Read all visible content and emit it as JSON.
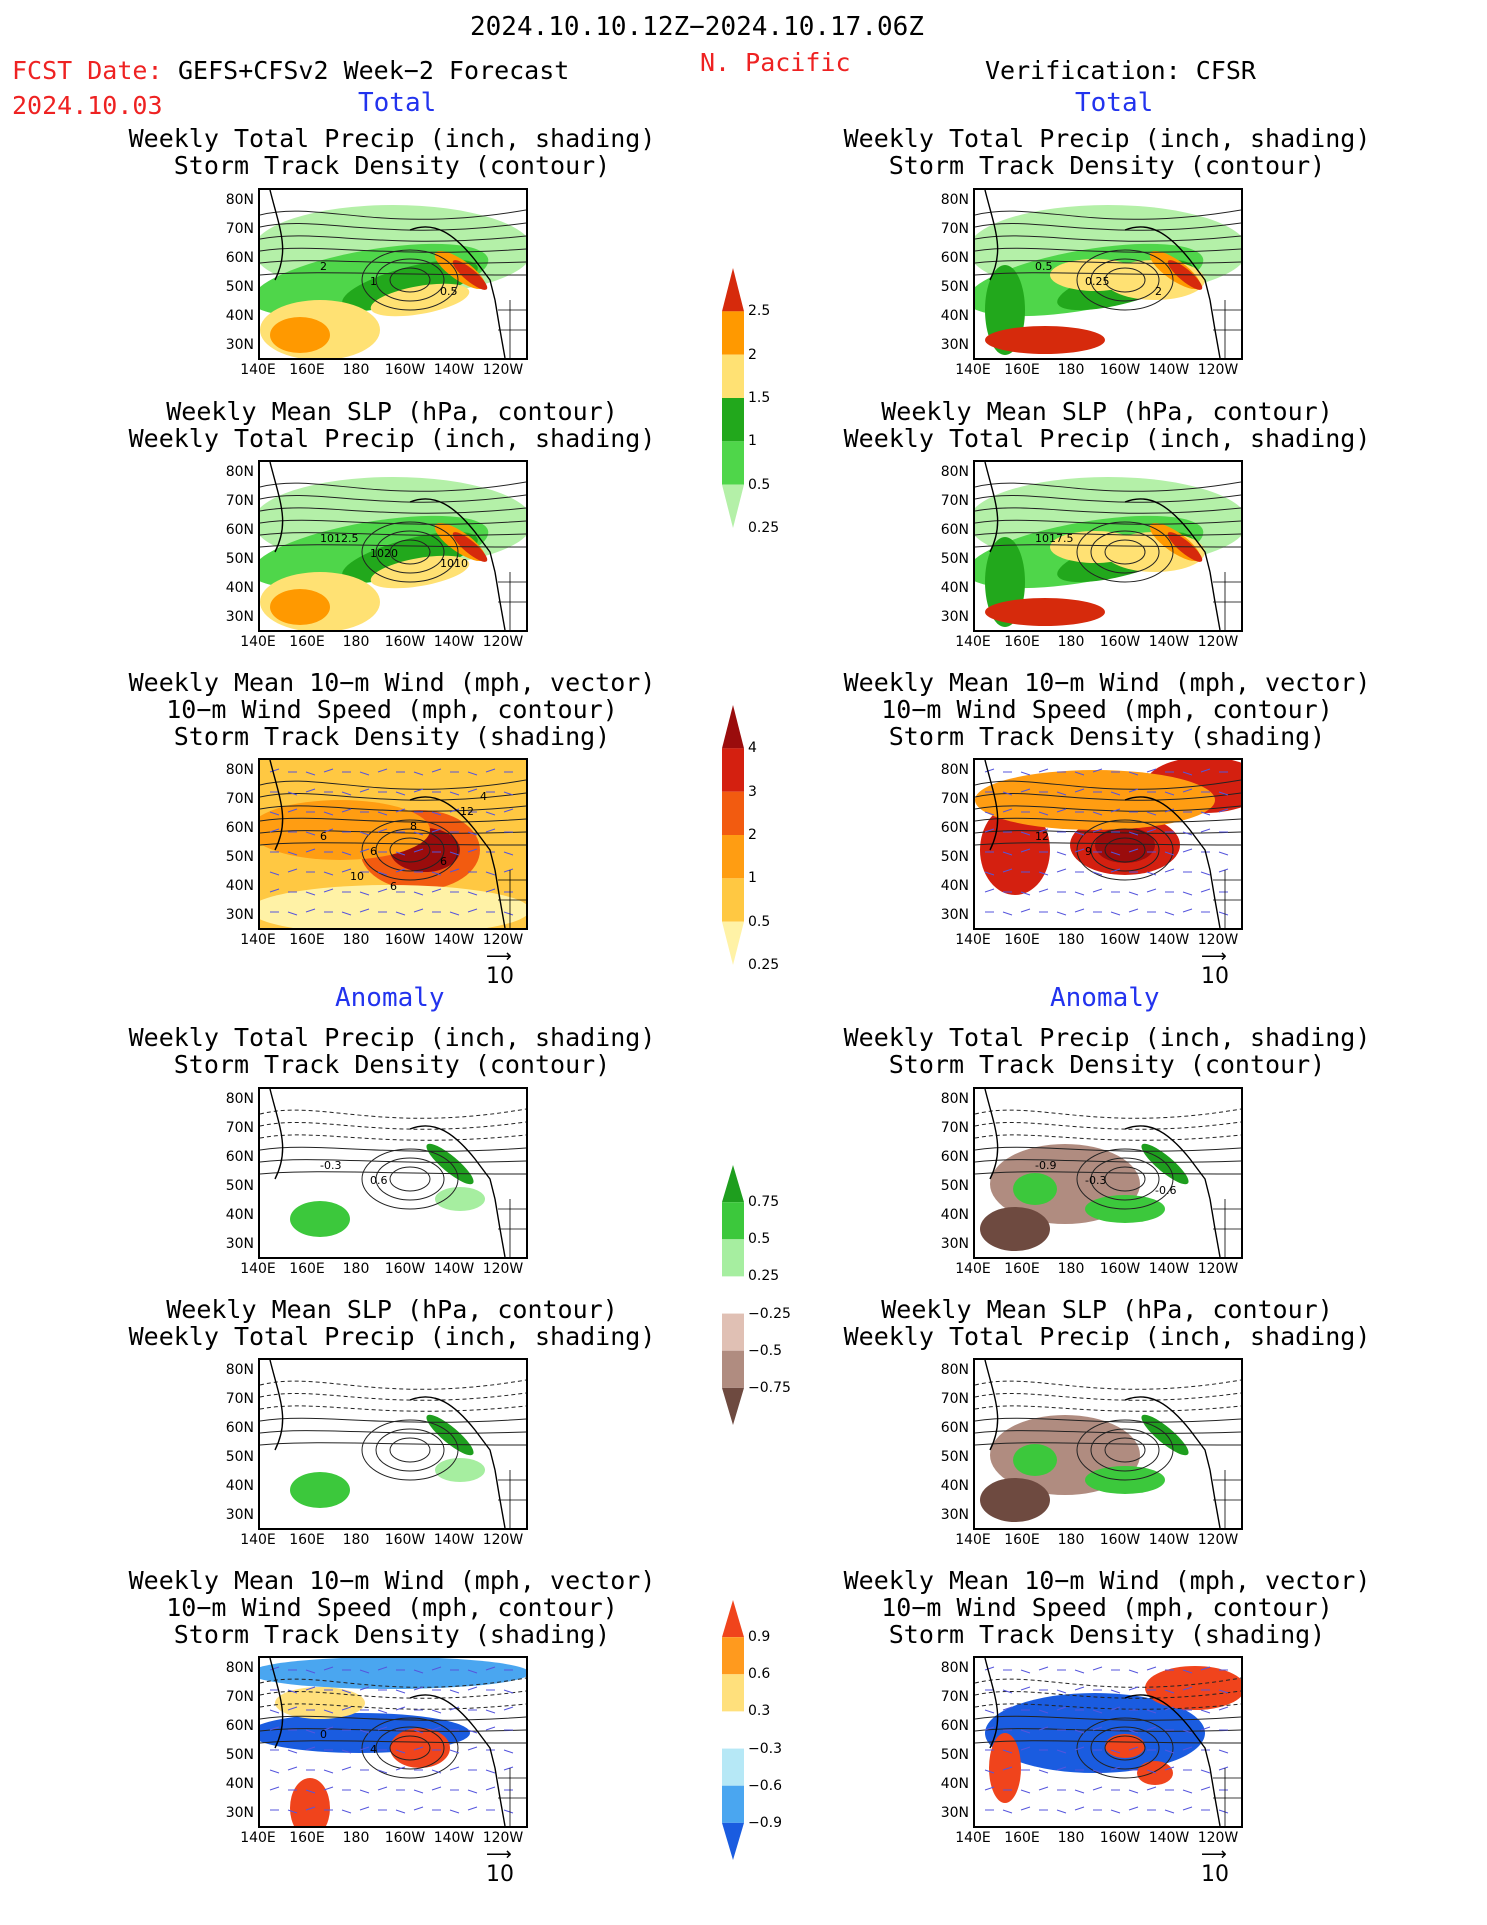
{
  "header": {
    "period": "2024.10.10.12Z−2024.10.17.06Z",
    "region": "N. Pacific",
    "fcst_label": "FCST Date:",
    "fcst_model": "GEFS+CFSv2 Week−2 Forecast",
    "fcst_date": "2024.10.03",
    "verification": "Verification: CFSR"
  },
  "sections": {
    "total": "Total",
    "anomaly": "Anomaly"
  },
  "titles": {
    "precip_storm": [
      "Weekly Total Precip (inch, shading)",
      "Storm Track Density (contour)"
    ],
    "slp_precip": [
      "Weekly Mean SLP (hPa, contour)",
      "Weekly Total Precip (inch, shading)"
    ],
    "wind": [
      "Weekly Mean 10−m Wind (mph, vector)",
      "10−m Wind Speed (mph, contour)",
      "Storm Track Density (shading)"
    ]
  },
  "axes": {
    "lat": [
      "80N",
      "70N",
      "60N",
      "50N",
      "40N",
      "30N"
    ],
    "lon": [
      "140E",
      "160E",
      "180",
      "160W",
      "140W",
      "120W"
    ]
  },
  "vector_ref": "10",
  "colorbars": {
    "precip_total": {
      "labels": [
        "2.5",
        "2",
        "1.5",
        "1",
        "0.5",
        "0.25"
      ],
      "colors": [
        "#d62a0c",
        "#ff9900",
        "#ffe173",
        "#22a81c",
        "#4fd64a",
        "#b4f0a8"
      ]
    },
    "storm_total": {
      "labels": [
        "4",
        "3",
        "2",
        "1",
        "0.5",
        "0.25"
      ],
      "colors": [
        "#9a0c0c",
        "#d42010",
        "#f25b10",
        "#ff9d12",
        "#ffc842",
        "#fff2a6"
      ]
    },
    "precip_anom": {
      "labels": [
        "0.75",
        "0.5",
        "0.25",
        "−0.25",
        "−0.5",
        "−0.75"
      ],
      "colors": [
        "#1e9e1e",
        "#3cc83c",
        "#a6eea0",
        "#ffffff",
        "#e0c0b4",
        "#b08c80",
        "#6e4a40"
      ]
    },
    "storm_anom": {
      "labels": [
        "0.9",
        "0.6",
        "0.3",
        "−0.3",
        "−0.6",
        "−0.9"
      ],
      "colors": [
        "#f0441c",
        "#ff9a1e",
        "#ffe07c",
        "#ffffff",
        "#b6e8f6",
        "#4aa6f0",
        "#1a5ce0"
      ]
    }
  },
  "contour_labels": {
    "fc_precip_total": [
      "2",
      "1",
      "0.5"
    ],
    "obs_precip_total": [
      "0.5",
      "0.25",
      "2"
    ],
    "fc_slp_total": [
      "1012.5",
      "1020",
      "1010"
    ],
    "obs_slp_total": [
      "1017.5"
    ],
    "fc_wind_total": [
      "6",
      "6",
      "6",
      "8",
      "12",
      "10",
      "6",
      "4"
    ],
    "obs_wind_total": [
      "12",
      "9"
    ],
    "fc_precip_anom": [
      "-0.3",
      "0.6"
    ],
    "obs_precip_anom": [
      "-0.9",
      "-0.3",
      "-0.6"
    ],
    "fc_wind_anom": [
      "0",
      "4"
    ]
  }
}
